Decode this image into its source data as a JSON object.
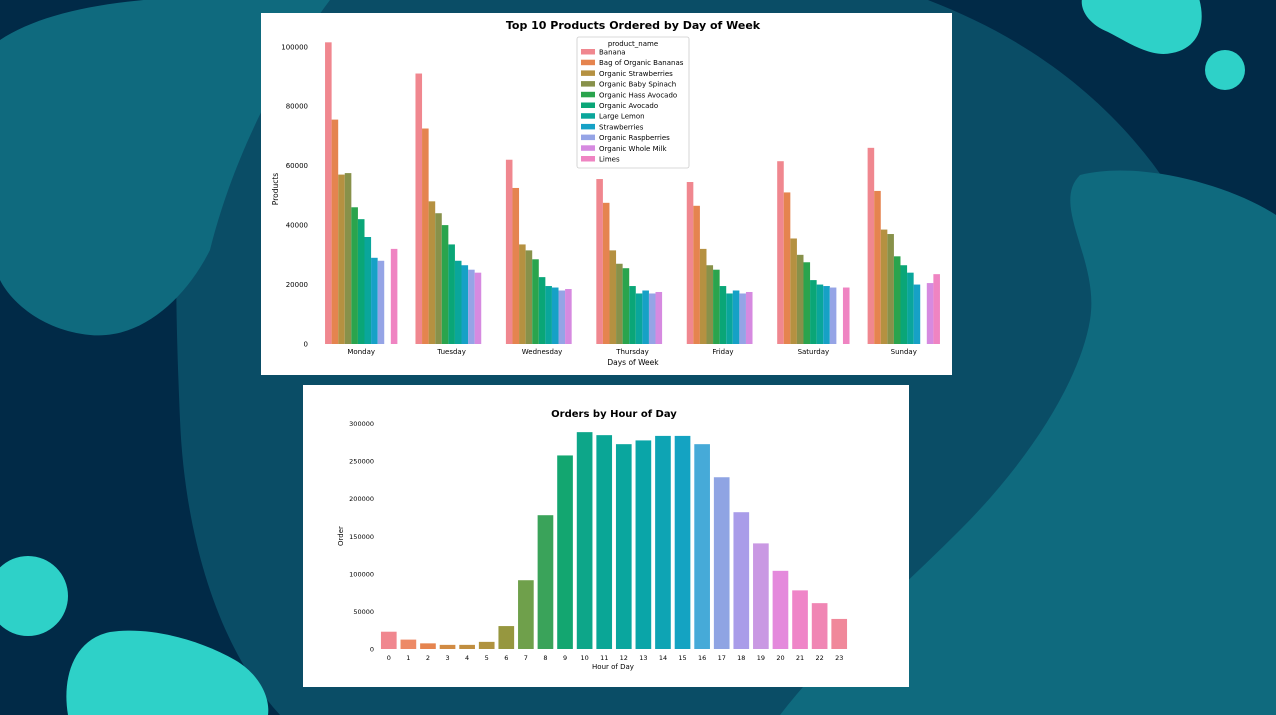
{
  "colors": {
    "background": "#012a47",
    "blob_mid": "#0a4d66",
    "blob_light": "#0f6a7e",
    "accent": "#2ed1c8",
    "panel": "#ffffff"
  },
  "chart_data": [
    {
      "type": "bar",
      "title": "Top 10 Products Ordered by Day of Week",
      "xlabel": "Days of Week",
      "ylabel": "Products",
      "ylim": [
        0,
        108000
      ],
      "yticks": [
        0,
        20000,
        40000,
        60000,
        80000,
        100000
      ],
      "grid": false,
      "legend_title": "product_name",
      "legend_position": "top-center",
      "categories": [
        "Monday",
        "Tuesday",
        "Wednesday",
        "Thursday",
        "Friday",
        "Saturday",
        "Sunday"
      ],
      "series": [
        {
          "name": "Banana",
          "color": "#f0878f",
          "values": [
            101500,
            91000,
            62000,
            55500,
            54500,
            61500,
            66000
          ]
        },
        {
          "name": "Bag of Organic Bananas",
          "color": "#e5844f",
          "values": [
            75500,
            72500,
            52500,
            47500,
            46500,
            51000,
            51500
          ]
        },
        {
          "name": "Organic Strawberries",
          "color": "#b59141",
          "values": [
            57000,
            48000,
            33500,
            31500,
            32000,
            35500,
            38500
          ]
        },
        {
          "name": "Organic Baby Spinach",
          "color": "#88914a",
          "values": [
            57500,
            44000,
            31500,
            27000,
            26500,
            30000,
            37000
          ]
        },
        {
          "name": "Organic Hass Avocado",
          "color": "#2aa44d",
          "values": [
            46000,
            40000,
            28500,
            25500,
            25000,
            27500,
            29500
          ]
        },
        {
          "name": "Organic Avocado",
          "color": "#0aa677",
          "values": [
            42000,
            33500,
            22500,
            19500,
            19500,
            21500,
            26500
          ]
        },
        {
          "name": "Large Lemon",
          "color": "#0aa69b",
          "values": [
            36000,
            28000,
            19500,
            17000,
            17000,
            20000,
            24000
          ]
        },
        {
          "name": "Strawberries",
          "color": "#16a1c6",
          "values": [
            29000,
            26500,
            19000,
            18000,
            18000,
            19500,
            20000
          ]
        },
        {
          "name": "Organic Raspberries",
          "color": "#95a4e6",
          "values": [
            28000,
            25000,
            18000,
            17000,
            17000,
            19000,
            null
          ]
        },
        {
          "name": "Organic Whole Milk",
          "color": "#d68ae0",
          "values": [
            null,
            24000,
            18500,
            17500,
            17500,
            null,
            20500
          ]
        },
        {
          "name": "Limes",
          "color": "#ef84c2",
          "values": [
            32000,
            null,
            null,
            null,
            null,
            19000,
            23500
          ]
        }
      ]
    },
    {
      "type": "bar",
      "title": "Orders by Hour of Day",
      "xlabel": "Hour of Day",
      "ylabel": "Order",
      "ylim": [
        0,
        300000
      ],
      "yticks": [
        0,
        50000,
        100000,
        150000,
        200000,
        250000,
        300000
      ],
      "grid": false,
      "categories": [
        "0",
        "1",
        "2",
        "3",
        "4",
        "5",
        "6",
        "7",
        "8",
        "9",
        "10",
        "11",
        "12",
        "13",
        "14",
        "15",
        "16",
        "17",
        "18",
        "19",
        "20",
        "21",
        "22",
        "23"
      ],
      "values": [
        23000,
        12500,
        7500,
        5500,
        5500,
        9500,
        30500,
        91500,
        178000,
        257500,
        288500,
        284500,
        272500,
        277500,
        283500,
        283500,
        272500,
        228500,
        182000,
        140500,
        104000,
        78000,
        61000,
        40000
      ],
      "colors": [
        "#f0878f",
        "#ed8a67",
        "#e5844f",
        "#d18b43",
        "#c08e3f",
        "#b0933f",
        "#96973f",
        "#6fa04b",
        "#3aa35a",
        "#13a670",
        "#0da689",
        "#0aa696",
        "#0aa69e",
        "#0aa5a8",
        "#0ea4b4",
        "#14a3c2",
        "#46aad8",
        "#8fa4e3",
        "#a99ce9",
        "#c998e3",
        "#e489dc",
        "#ef85c8",
        "#f086b4",
        "#f0889a"
      ]
    }
  ]
}
